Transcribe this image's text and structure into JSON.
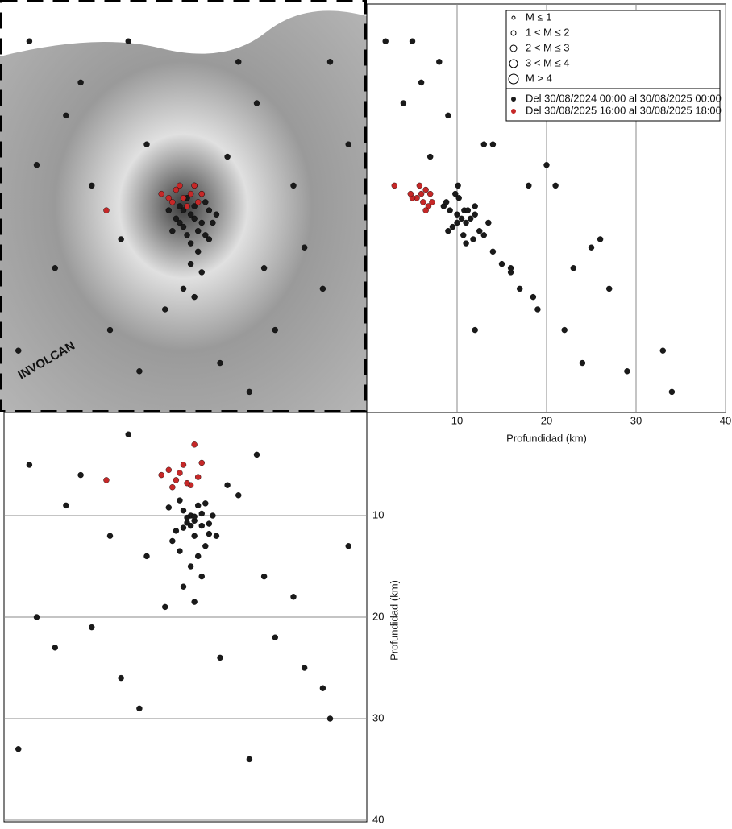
{
  "chart_data": [
    {
      "type": "map",
      "logo": "INVOLCAN",
      "legend": {
        "size_labels": [
          "M ≤ 1",
          "1 < M ≤ 2",
          "2 < M ≤ 3",
          "3 < M ≤ 4",
          "M > 4"
        ]
      },
      "xlim": [
        0,
        1
      ],
      "ylim": [
        0,
        1
      ],
      "series": [
        {
          "name": "Del 30/08/2024 00:00 al 30/08/2025 00:00",
          "color": "#1a1a1a",
          "x": [
            0.52,
            0.55,
            0.5,
            0.57,
            0.53,
            0.48,
            0.54,
            0.51,
            0.56,
            0.49,
            0.58,
            0.52,
            0.55,
            0.47,
            0.53,
            0.5,
            0.56,
            0.54,
            0.51,
            0.59,
            0.46,
            0.53,
            0.57,
            0.49,
            0.52,
            0.55,
            0.5,
            0.53,
            0.22,
            0.35,
            0.1,
            0.15,
            0.3,
            0.7,
            0.8,
            0.88,
            0.75,
            0.65,
            0.4,
            0.62,
            0.45,
            0.9,
            0.05,
            0.25,
            0.83,
            0.38,
            0.6,
            0.72,
            0.18,
            0.95,
            0.08,
            0.68,
            0.33
          ],
          "y": [
            0.48,
            0.46,
            0.45,
            0.49,
            0.5,
            0.47,
            0.44,
            0.52,
            0.43,
            0.5,
            0.46,
            0.41,
            0.53,
            0.44,
            0.47,
            0.49,
            0.51,
            0.39,
            0.43,
            0.48,
            0.49,
            0.55,
            0.42,
            0.46,
            0.36,
            0.34,
            0.3,
            0.28,
            0.8,
            0.9,
            0.6,
            0.35,
            0.2,
            0.75,
            0.55,
            0.3,
            0.2,
            0.85,
            0.65,
            0.62,
            0.25,
            0.85,
            0.15,
            0.55,
            0.4,
            0.1,
            0.12,
            0.35,
            0.72,
            0.65,
            0.9,
            0.05,
            0.42
          ],
          "depth": [
            10,
            11,
            9.5,
            10.8,
            12,
            11.5,
            9,
            10.2,
            13,
            8.5,
            10,
            11,
            9.8,
            12.5,
            10.5,
            11.2,
            8.8,
            14,
            10.7,
            12,
            9.2,
            10.1,
            11.8,
            13.5,
            15,
            16,
            17,
            18.5,
            6,
            2,
            20,
            23,
            12,
            4,
            18,
            27,
            22,
            8,
            14,
            7,
            19,
            30,
            33,
            21,
            25,
            29,
            24,
            16,
            9,
            13,
            5,
            34,
            26
          ]
        },
        {
          "name": "Del 30/08/2025 16:00 al 30/08/2025 18:00",
          "color": "#c62828",
          "x": [
            0.44,
            0.46,
            0.48,
            0.5,
            0.52,
            0.54,
            0.47,
            0.49,
            0.51,
            0.55,
            0.29,
            0.53
          ],
          "y": [
            0.53,
            0.52,
            0.54,
            0.52,
            0.53,
            0.51,
            0.51,
            0.55,
            0.5,
            0.53,
            0.49,
            0.55
          ],
          "depth": [
            6,
            5.5,
            6.5,
            5,
            7,
            6.2,
            7.2,
            5.8,
            6.8,
            4.8,
            6.5,
            3
          ]
        }
      ]
    },
    {
      "type": "depth-x",
      "xlabel": "Profundidad (km)",
      "xlim": [
        0,
        40
      ],
      "xticks": [
        10,
        20,
        30,
        40
      ],
      "grid": true
    },
    {
      "type": "depth-y",
      "ylabel": "Profundidad (km)",
      "ylim": [
        0,
        40
      ],
      "yticks": [
        10,
        20,
        30,
        40
      ],
      "grid": true
    }
  ]
}
